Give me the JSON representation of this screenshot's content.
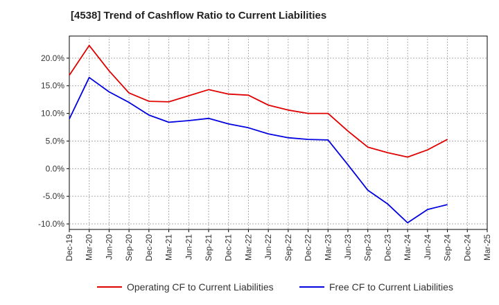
{
  "chart_data": {
    "type": "line",
    "title": "[4538]  Trend of Cashflow Ratio to Current Liabilities",
    "x": [
      "Dec-19",
      "Mar-20",
      "Jun-20",
      "Sep-20",
      "Dec-20",
      "Mar-21",
      "Jun-21",
      "Sep-21",
      "Dec-21",
      "Mar-22",
      "Jun-22",
      "Sep-22",
      "Dec-22",
      "Mar-23",
      "Jun-23",
      "Sep-23",
      "Dec-23",
      "Mar-24",
      "Jun-24",
      "Sep-24",
      "Dec-24",
      "Mar-25"
    ],
    "y_ticks": [
      "20.0%",
      "15.0%",
      "10.0%",
      "5.0%",
      "0.0%",
      "-5.0%",
      "-10.0%"
    ],
    "ylim": [
      -11,
      24
    ],
    "grid": true,
    "legend_position": "bottom",
    "series": [
      {
        "name": "Operating CF to Current Liabilities",
        "color": "#e00000",
        "values": [
          16.9,
          22.3,
          17.7,
          13.7,
          12.2,
          12.1,
          13.2,
          14.3,
          13.5,
          13.3,
          11.5,
          10.6,
          10.0,
          10.0,
          6.8,
          3.9,
          2.9,
          2.1,
          3.4,
          5.3,
          null,
          null
        ]
      },
      {
        "name": "Free CF to Current Liabilities",
        "color": "#0000e0",
        "values": [
          9.0,
          16.5,
          13.9,
          12.0,
          9.7,
          8.4,
          8.7,
          9.1,
          8.1,
          7.4,
          6.3,
          5.6,
          5.3,
          5.2,
          0.7,
          -3.9,
          -6.4,
          -9.8,
          -7.4,
          -6.5,
          null,
          null
        ]
      }
    ]
  }
}
